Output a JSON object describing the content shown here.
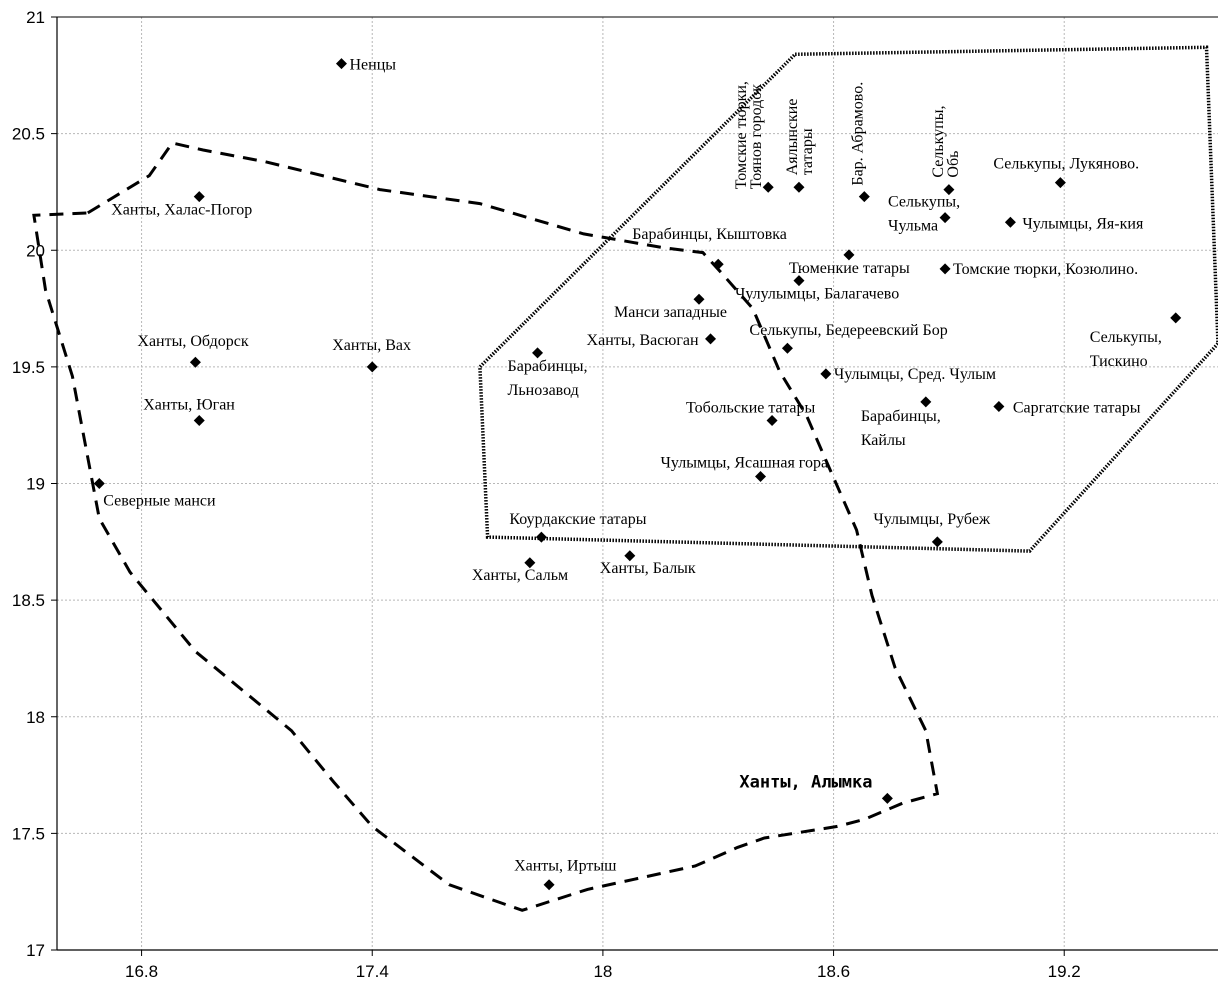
{
  "chart_data": {
    "type": "scatter",
    "xlim": [
      16.58,
      19.6
    ],
    "ylim": [
      17.0,
      21.0
    ],
    "xticks": [
      16.8,
      17.4,
      18.0,
      18.6,
      19.2
    ],
    "xtick_labels": [
      "16.8",
      "17.4",
      "18",
      "18.6",
      "19.2"
    ],
    "yticks": [
      17.0,
      17.5,
      18.0,
      18.5,
      19.0,
      19.5,
      20.0,
      20.5,
      21.0
    ],
    "ytick_labels": [
      "17",
      "17.5",
      "18",
      "18.5",
      "19",
      "19.5",
      "20",
      "20.5",
      "21"
    ],
    "grid": true,
    "points": [
      {
        "x": 17.32,
        "y": 20.8,
        "label": [
          "Ненцы"
        ]
      },
      {
        "x": 16.95,
        "y": 20.23,
        "label": [
          "Ханты, Халас-Погор"
        ]
      },
      {
        "x": 16.94,
        "y": 19.52,
        "label": [
          "Ханты, Обдорск"
        ]
      },
      {
        "x": 17.4,
        "y": 19.5,
        "label": [
          "Ханты, Вах"
        ]
      },
      {
        "x": 16.95,
        "y": 19.27,
        "label": [
          "Ханты, Юган"
        ]
      },
      {
        "x": 16.69,
        "y": 19.0,
        "label": [
          "Северные манси"
        ]
      },
      {
        "x": 17.81,
        "y": 18.66,
        "label": [
          "Ханты, Сальм"
        ]
      },
      {
        "x": 17.84,
        "y": 18.77,
        "label": [
          "Коурдакские татары"
        ]
      },
      {
        "x": 18.07,
        "y": 18.69,
        "label": [
          "Ханты, Балык"
        ]
      },
      {
        "x": 17.83,
        "y": 19.56,
        "label": [
          "Барабинцы,",
          "Льнозавод"
        ]
      },
      {
        "x": 17.86,
        "y": 17.28,
        "label": [
          "Ханты, Иртыш"
        ]
      },
      {
        "x": 18.74,
        "y": 17.65,
        "label": [
          "Ханты, Алымка"
        ],
        "bold": true
      },
      {
        "x": 18.25,
        "y": 19.79,
        "label": [
          "Манси западные"
        ]
      },
      {
        "x": 18.28,
        "y": 19.62,
        "label": [
          "Ханты, Васюган"
        ]
      },
      {
        "x": 18.3,
        "y": 19.94,
        "label": [
          "Барабинцы, Кыштовка"
        ]
      },
      {
        "x": 18.43,
        "y": 20.27,
        "label": [
          "Томские тюрки,",
          "Тоянов городок"
        ]
      },
      {
        "x": 18.51,
        "y": 20.27,
        "label": [
          "Аялынские",
          "татары"
        ]
      },
      {
        "x": 18.68,
        "y": 20.23,
        "label": [
          "Бар. Абрамово."
        ]
      },
      {
        "x": 18.9,
        "y": 20.26,
        "label": [
          "Селькупы,",
          "Обь"
        ]
      },
      {
        "x": 19.19,
        "y": 20.29,
        "label": [
          "Селькупы, Лукяново."
        ]
      },
      {
        "x": 18.89,
        "y": 20.14,
        "label": [
          "Селькупы,",
          "Чульма"
        ]
      },
      {
        "x": 19.06,
        "y": 20.12,
        "label": [
          "Чулымцы, Яя-кия"
        ]
      },
      {
        "x": 18.64,
        "y": 19.98,
        "label": [
          "Тюменкие татары"
        ]
      },
      {
        "x": 18.89,
        "y": 19.92,
        "label": [
          "Томские тюрки, Козюлино."
        ]
      },
      {
        "x": 18.51,
        "y": 19.87,
        "label": [
          "Чулулымцы, Балагачево"
        ]
      },
      {
        "x": 18.48,
        "y": 19.58,
        "label": [
          "Селькупы, Бедереевский Бор"
        ]
      },
      {
        "x": 19.49,
        "y": 19.71,
        "label": [
          "Селькупы,",
          "Тискино"
        ]
      },
      {
        "x": 18.58,
        "y": 19.47,
        "label": [
          "Чулымцы, Сред. Чулым"
        ]
      },
      {
        "x": 18.84,
        "y": 19.35,
        "label": [
          "Барабинцы,",
          "Кайлы"
        ]
      },
      {
        "x": 19.03,
        "y": 19.33,
        "label": [
          "Саргатские татары"
        ]
      },
      {
        "x": 18.44,
        "y": 19.27,
        "label": [
          "Тобольские татары"
        ]
      },
      {
        "x": 18.41,
        "y": 19.03,
        "label": [
          "Чулымцы, Ясашная гора"
        ]
      },
      {
        "x": 18.87,
        "y": 18.75,
        "label": [
          "Чулымцы, Рубеж"
        ]
      }
    ],
    "hulls": [
      {
        "style": "dashed",
        "points": [
          [
            16.66,
            20.16
          ],
          [
            16.82,
            20.32
          ],
          [
            16.88,
            20.46
          ],
          [
            16.96,
            20.43
          ],
          [
            17.12,
            20.38
          ],
          [
            17.42,
            20.26
          ],
          [
            17.68,
            20.2
          ],
          [
            17.95,
            20.07
          ],
          [
            18.16,
            20.01
          ],
          [
            18.26,
            19.99
          ],
          [
            18.31,
            19.9
          ],
          [
            18.39,
            19.75
          ],
          [
            18.46,
            19.48
          ],
          [
            18.53,
            19.29
          ],
          [
            18.58,
            19.1
          ],
          [
            18.66,
            18.8
          ],
          [
            18.7,
            18.52
          ],
          [
            18.76,
            18.21
          ],
          [
            18.84,
            17.94
          ],
          [
            18.87,
            17.67
          ],
          [
            18.78,
            17.63
          ],
          [
            18.68,
            17.56
          ],
          [
            18.61,
            17.53
          ],
          [
            18.42,
            17.48
          ],
          [
            18.35,
            17.44
          ],
          [
            18.24,
            17.36
          ],
          [
            17.96,
            17.26
          ],
          [
            17.79,
            17.17
          ],
          [
            17.6,
            17.28
          ],
          [
            17.4,
            17.53
          ],
          [
            17.3,
            17.72
          ],
          [
            17.19,
            17.94
          ],
          [
            16.94,
            18.28
          ],
          [
            16.77,
            18.62
          ],
          [
            16.69,
            18.85
          ],
          [
            16.62,
            19.46
          ],
          [
            16.55,
            19.83
          ],
          [
            16.52,
            20.15
          ]
        ]
      },
      {
        "style": "dotted",
        "points": [
          [
            18.5,
            20.84
          ],
          [
            19.57,
            20.87
          ],
          [
            19.6,
            19.6
          ],
          [
            19.11,
            18.71
          ],
          [
            17.7,
            18.77
          ],
          [
            17.68,
            19.5
          ]
        ]
      }
    ]
  }
}
